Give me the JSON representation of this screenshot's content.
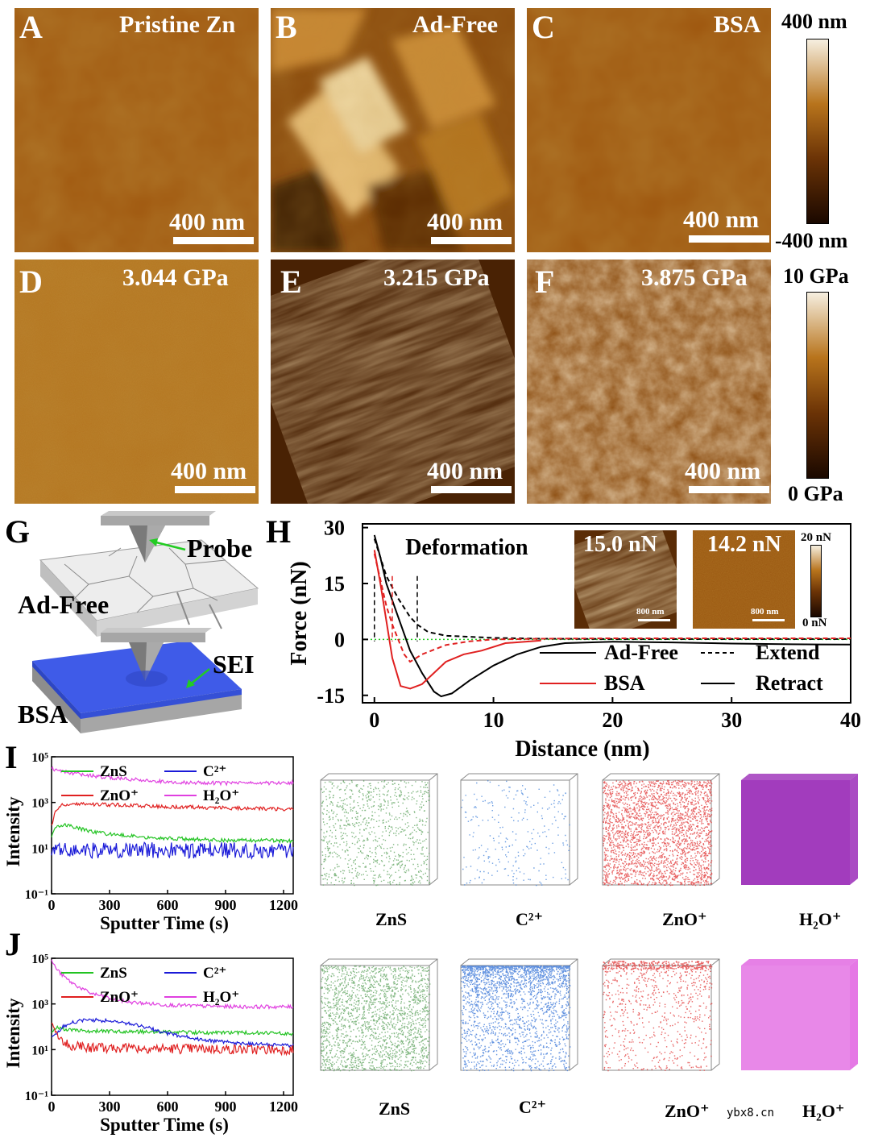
{
  "afm_panels": [
    {
      "letter": "A",
      "title": "Pristine Zn",
      "scale": "400 nm"
    },
    {
      "letter": "B",
      "title": "Ad-Free",
      "scale": "400 nm"
    },
    {
      "letter": "C",
      "title": "BSA",
      "scale": "400 nm"
    },
    {
      "letter": "D",
      "title": "3.044 GPa",
      "scale": "400 nm"
    },
    {
      "letter": "E",
      "title": "3.215 GPa",
      "scale": "400 nm"
    },
    {
      "letter": "F",
      "title": "3.875 GPa",
      "scale": "400 nm"
    }
  ],
  "height_colorbar": {
    "top": "400 nm",
    "bottom": "-400 nm"
  },
  "modulus_colorbar": {
    "top": "10 GPa",
    "bottom": "0 GPa"
  },
  "colors": {
    "afm_dark": "#2a1200",
    "afm_mid": "#a0590f",
    "afm_light": "#f3e9d6",
    "zns": "#22c322",
    "c2": "#1a1ad8",
    "zno": "#e02020",
    "h2o": "#e040e0"
  },
  "panel_g": {
    "letter": "G",
    "top_label": "Ad-Free",
    "top_arrow_label": "Probe",
    "bottom_label": "BSA",
    "bottom_arrow_label": "SEI"
  },
  "panel_h": {
    "letter": "H",
    "annotation": "Deformation",
    "inset_left_value": "15.0 nN",
    "inset_right_value": "14.2 nN",
    "inset_scale": "800 nm",
    "inset_cbar_top": "20 nN",
    "inset_cbar_bottom": "0 nN",
    "legend": {
      "adfree": "Ad-Free",
      "bsa": "BSA",
      "extend": "Extend",
      "retract": "Retract"
    }
  },
  "panel_i": {
    "letter": "I"
  },
  "panel_j": {
    "letter": "J"
  },
  "tof_labels_i": [
    "ZnS",
    "C²⁺",
    "ZnO⁺",
    "H₂O⁺"
  ],
  "tof_labels_j": [
    "ZnS",
    "C²⁺",
    "ZnO⁺",
    "H₂O⁺"
  ],
  "watermark": "ybx8.cn",
  "chart_data": [
    {
      "type": "line",
      "id": "H",
      "xlabel": "Distance (nm)",
      "ylabel": "Force (nN)",
      "xlim": [
        -1,
        40
      ],
      "ylim": [
        -17,
        31
      ],
      "xticks": [
        0,
        10,
        20,
        30,
        40
      ],
      "yticks": [
        -15,
        0,
        15,
        30
      ],
      "series": [
        {
          "name": "Ad-Free",
          "style": "retract",
          "color": "#000000",
          "x": [
            0,
            0.5,
            1,
            2,
            3,
            4,
            5,
            5.6,
            6.5,
            8,
            10,
            12,
            14,
            16,
            20,
            25,
            30,
            35,
            40
          ],
          "y": [
            28,
            22,
            15,
            6,
            -3,
            -9,
            -14,
            -15.3,
            -14.5,
            -11,
            -7,
            -4,
            -2,
            -1,
            -0.6,
            -0.8,
            -1.1,
            -1.3,
            -1.4
          ]
        },
        {
          "name": "Ad-Free",
          "style": "extend",
          "color": "#000000",
          "x": [
            0,
            0.5,
            1,
            2,
            3,
            3.6,
            4.5,
            6,
            8,
            10,
            14,
            20,
            30,
            40
          ],
          "y": [
            27,
            22,
            17,
            11,
            6,
            4,
            2,
            1,
            0.7,
            0.4,
            0.2,
            0.1,
            0.1,
            0.1
          ]
        },
        {
          "name": "BSA",
          "style": "retract",
          "color": "#e02020",
          "x": [
            0,
            0.5,
            1,
            1.5,
            2.2,
            3,
            4,
            5,
            6,
            7.5,
            9,
            11,
            14
          ],
          "y": [
            24,
            15,
            5,
            -5,
            -12.5,
            -13.2,
            -12,
            -9,
            -6,
            -4,
            -3,
            -1,
            -0.3
          ]
        },
        {
          "name": "BSA",
          "style": "extend",
          "color": "#e02020",
          "x": [
            0,
            0.5,
            1,
            1.5,
            2,
            2.5,
            3,
            4,
            6,
            8,
            10,
            14,
            20,
            40
          ],
          "y": [
            23,
            16,
            9,
            4,
            0,
            -4,
            -6,
            -4,
            -1.5,
            -0.5,
            0,
            0.2,
            0.3,
            0.3
          ]
        }
      ]
    },
    {
      "type": "line",
      "id": "I",
      "xlabel": "Sputter Time (s)",
      "ylabel": "Intensity",
      "xlim": [
        0,
        1250
      ],
      "ylim_log10": [
        -1,
        5
      ],
      "xticks": [
        0,
        300,
        600,
        900,
        1200
      ],
      "ytick_labels": [
        "10⁻¹",
        "10¹",
        "10³",
        "10⁵"
      ],
      "series": [
        {
          "name": "ZnS",
          "color": "#22c322",
          "x": [
            0,
            20,
            60,
            100,
            200,
            300,
            500,
            700,
            900,
            1100,
            1250
          ],
          "y": [
            30,
            80,
            110,
            90,
            55,
            40,
            30,
            25,
            22,
            22,
            20
          ]
        },
        {
          "name": "C²⁺",
          "color": "#1a1ad8",
          "x": [
            0,
            100,
            300,
            600,
            900,
            1250
          ],
          "y": [
            8,
            8,
            8,
            8,
            8,
            8
          ]
        },
        {
          "name": "ZnO⁺",
          "color": "#e02020",
          "x": [
            0,
            20,
            50,
            100,
            200,
            400,
            600,
            800,
            1000,
            1250
          ],
          "y": [
            100,
            400,
            800,
            900,
            850,
            750,
            650,
            600,
            550,
            500
          ]
        },
        {
          "name": "H₂O⁺",
          "color": "#e040e0",
          "x": [
            0,
            50,
            100,
            200,
            300,
            500,
            700,
            900,
            1100,
            1250
          ],
          "y": [
            30000,
            25000,
            20000,
            15000,
            12000,
            9000,
            7500,
            7000,
            7000,
            7500
          ]
        }
      ]
    },
    {
      "type": "line",
      "id": "J",
      "xlabel": "Sputter Time (s)",
      "ylabel": "Intensity",
      "xlim": [
        0,
        1250
      ],
      "ylim_log10": [
        -1,
        5
      ],
      "xticks": [
        0,
        300,
        600,
        900,
        1200
      ],
      "ytick_labels": [
        "10⁻¹",
        "10¹",
        "10³",
        "10⁵"
      ],
      "series": [
        {
          "name": "ZnS",
          "color": "#22c322",
          "x": [
            0,
            30,
            60,
            100,
            200,
            400,
            600,
            800,
            1000,
            1250
          ],
          "y": [
            60,
            100,
            80,
            70,
            65,
            60,
            60,
            55,
            55,
            50
          ]
        },
        {
          "name": "C²⁺",
          "color": "#1a1ad8",
          "x": [
            0,
            30,
            60,
            100,
            150,
            200,
            300,
            400,
            500,
            600,
            800,
            1000,
            1250
          ],
          "y": [
            40,
            60,
            100,
            150,
            180,
            200,
            180,
            140,
            90,
            50,
            25,
            18,
            15
          ]
        },
        {
          "name": "ZnO⁺",
          "color": "#e02020",
          "x": [
            0,
            20,
            40,
            60,
            100,
            200,
            400,
            600,
            800,
            1000,
            1250
          ],
          "y": [
            200,
            80,
            30,
            20,
            15,
            12,
            12,
            11,
            11,
            10,
            10
          ]
        },
        {
          "name": "H₂O⁺",
          "color": "#e040e0",
          "x": [
            0,
            20,
            50,
            100,
            150,
            200,
            300,
            400,
            600,
            800,
            1000,
            1250
          ],
          "y": [
            80000,
            40000,
            20000,
            9000,
            5000,
            3000,
            1800,
            1200,
            900,
            800,
            750,
            750
          ]
        }
      ]
    }
  ]
}
